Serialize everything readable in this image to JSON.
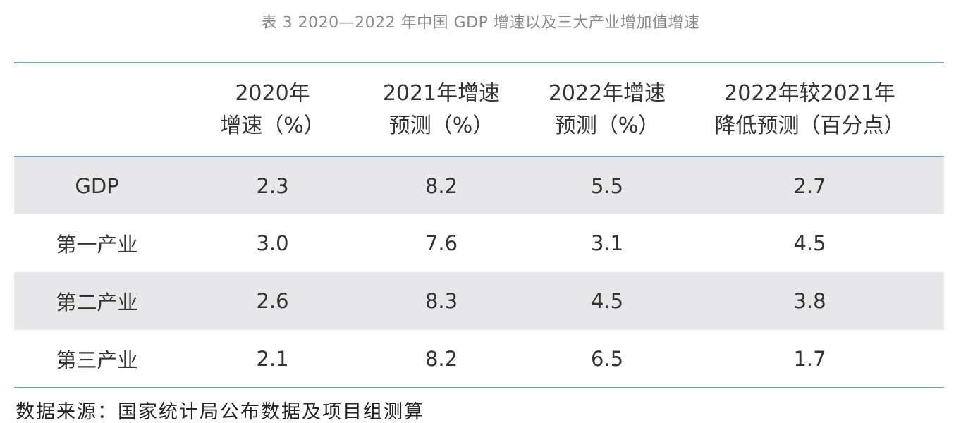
{
  "caption": "表 3 2020—2022 年中国 GDP 增速以及三大产业增加值增速",
  "table": {
    "headers": [
      {
        "line1": "",
        "line2": ""
      },
      {
        "line1": "2020年",
        "line2": "增速（%）"
      },
      {
        "line1": "2021年增速",
        "line2": "预测（%）"
      },
      {
        "line1": "2022年增速",
        "line2": "预测（%）"
      },
      {
        "line1": "2022年较2021年",
        "line2": "降低预测（百分点）"
      }
    ],
    "rows": [
      {
        "label": "GDP",
        "values": [
          "2.3",
          "8.2",
          "5.5",
          "2.7"
        ]
      },
      {
        "label": "第一产业",
        "values": [
          "3.0",
          "7.6",
          "3.1",
          "4.5"
        ]
      },
      {
        "label": "第二产业",
        "values": [
          "2.6",
          "8.3",
          "4.5",
          "3.8"
        ]
      },
      {
        "label": "第三产业",
        "values": [
          "2.1",
          "8.2",
          "6.5",
          "1.7"
        ]
      }
    ]
  },
  "source": "数据来源：国家统计局公布数据及项目组测算",
  "colors": {
    "rule": "#6fa3c9",
    "shaded_row": "#e7e7ea",
    "caption_text": "#8a8a8a"
  }
}
